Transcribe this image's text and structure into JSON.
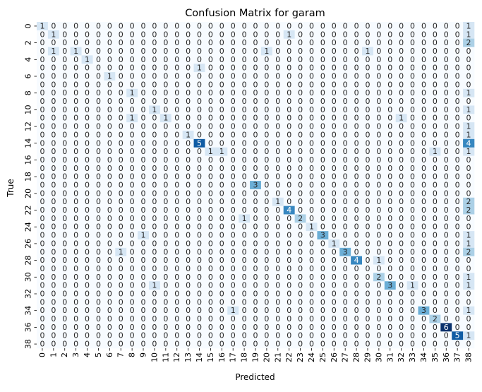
{
  "chart_data": {
    "type": "heatmap",
    "title": "Confusion Matrix for garam",
    "xlabel": "Predicted",
    "ylabel": "True",
    "x_tick_labels": [
      "0",
      "1",
      "2",
      "3",
      "4",
      "5",
      "6",
      "7",
      "8",
      "9",
      "10",
      "11",
      "12",
      "13",
      "14",
      "15",
      "16",
      "17",
      "18",
      "19",
      "20",
      "21",
      "22",
      "23",
      "24",
      "25",
      "26",
      "27",
      "28",
      "29",
      "30",
      "31",
      "32",
      "33",
      "34",
      "35",
      "36",
      "37",
      "38"
    ],
    "y_tick_labels": [
      "0",
      "2",
      "4",
      "6",
      "8",
      "10",
      "12",
      "14",
      "16",
      "18",
      "20",
      "22",
      "24",
      "26",
      "28",
      "30",
      "32",
      "34",
      "36",
      "38"
    ],
    "colormap": "Blues",
    "vmin": 0,
    "vmax": 6,
    "colorbar": false,
    "matrix": [
      [
        1,
        0,
        0,
        0,
        0,
        0,
        0,
        0,
        0,
        0,
        0,
        0,
        0,
        0,
        0,
        0,
        0,
        0,
        0,
        0,
        0,
        0,
        0,
        0,
        0,
        0,
        0,
        0,
        0,
        0,
        0,
        0,
        0,
        0,
        0,
        0,
        0,
        0,
        1
      ],
      [
        0,
        1,
        0,
        0,
        0,
        0,
        0,
        0,
        0,
        0,
        0,
        0,
        0,
        0,
        0,
        0,
        0,
        0,
        0,
        0,
        0,
        0,
        1,
        0,
        0,
        0,
        0,
        0,
        0,
        0,
        0,
        0,
        0,
        0,
        0,
        0,
        0,
        0,
        1
      ],
      [
        0,
        0,
        0,
        0,
        0,
        0,
        0,
        0,
        0,
        0,
        0,
        0,
        0,
        0,
        0,
        0,
        0,
        0,
        0,
        0,
        0,
        0,
        0,
        0,
        0,
        0,
        0,
        0,
        0,
        0,
        0,
        0,
        0,
        0,
        0,
        0,
        0,
        0,
        2
      ],
      [
        0,
        1,
        0,
        1,
        0,
        0,
        0,
        0,
        0,
        0,
        0,
        0,
        0,
        0,
        0,
        0,
        0,
        0,
        0,
        0,
        1,
        0,
        0,
        0,
        0,
        0,
        0,
        0,
        0,
        1,
        0,
        0,
        0,
        0,
        0,
        0,
        0,
        0,
        0
      ],
      [
        0,
        0,
        0,
        0,
        1,
        0,
        0,
        0,
        0,
        0,
        0,
        0,
        0,
        0,
        0,
        0,
        0,
        0,
        0,
        0,
        0,
        0,
        0,
        0,
        0,
        0,
        0,
        0,
        0,
        0,
        0,
        0,
        0,
        0,
        0,
        0,
        0,
        0,
        0
      ],
      [
        0,
        0,
        0,
        0,
        0,
        0,
        0,
        0,
        0,
        0,
        0,
        0,
        0,
        0,
        1,
        0,
        0,
        0,
        0,
        0,
        0,
        0,
        0,
        0,
        0,
        0,
        0,
        0,
        0,
        0,
        0,
        0,
        0,
        0,
        0,
        0,
        0,
        0,
        0
      ],
      [
        0,
        0,
        0,
        0,
        0,
        0,
        1,
        0,
        0,
        0,
        0,
        0,
        0,
        0,
        0,
        0,
        0,
        0,
        0,
        0,
        0,
        0,
        0,
        0,
        0,
        0,
        0,
        0,
        0,
        0,
        0,
        0,
        0,
        0,
        0,
        0,
        0,
        0,
        0
      ],
      [
        0,
        0,
        0,
        0,
        0,
        0,
        0,
        0,
        0,
        0,
        0,
        0,
        0,
        0,
        0,
        0,
        0,
        0,
        0,
        0,
        0,
        0,
        0,
        0,
        0,
        0,
        0,
        0,
        0,
        0,
        0,
        0,
        0,
        0,
        0,
        0,
        0,
        0,
        0
      ],
      [
        0,
        0,
        0,
        0,
        0,
        0,
        0,
        0,
        1,
        0,
        0,
        0,
        0,
        0,
        0,
        0,
        0,
        0,
        0,
        0,
        0,
        0,
        0,
        0,
        0,
        0,
        0,
        0,
        0,
        0,
        0,
        0,
        0,
        0,
        0,
        0,
        0,
        0,
        1
      ],
      [
        0,
        0,
        0,
        0,
        0,
        0,
        0,
        0,
        0,
        0,
        0,
        0,
        0,
        0,
        0,
        0,
        0,
        0,
        0,
        0,
        0,
        0,
        0,
        0,
        0,
        0,
        0,
        0,
        0,
        0,
        0,
        0,
        0,
        0,
        0,
        0,
        0,
        0,
        0
      ],
      [
        0,
        0,
        0,
        0,
        0,
        0,
        0,
        0,
        0,
        0,
        1,
        0,
        0,
        0,
        0,
        0,
        0,
        0,
        0,
        0,
        0,
        0,
        0,
        0,
        0,
        0,
        0,
        0,
        0,
        0,
        0,
        0,
        0,
        0,
        0,
        0,
        0,
        0,
        1
      ],
      [
        0,
        0,
        0,
        0,
        0,
        0,
        0,
        0,
        1,
        0,
        0,
        1,
        0,
        0,
        0,
        0,
        0,
        0,
        0,
        0,
        0,
        0,
        0,
        0,
        0,
        0,
        0,
        0,
        0,
        0,
        0,
        0,
        1,
        0,
        0,
        0,
        0,
        0,
        0
      ],
      [
        0,
        0,
        0,
        0,
        0,
        0,
        0,
        0,
        0,
        0,
        0,
        0,
        0,
        0,
        0,
        0,
        0,
        0,
        0,
        0,
        0,
        0,
        0,
        0,
        0,
        0,
        0,
        0,
        0,
        0,
        0,
        0,
        0,
        0,
        0,
        0,
        0,
        0,
        1
      ],
      [
        0,
        0,
        0,
        0,
        0,
        0,
        0,
        0,
        0,
        0,
        0,
        0,
        0,
        1,
        0,
        0,
        0,
        0,
        0,
        0,
        0,
        0,
        0,
        0,
        0,
        0,
        0,
        0,
        0,
        0,
        0,
        0,
        0,
        0,
        0,
        0,
        0,
        0,
        1
      ],
      [
        0,
        0,
        0,
        0,
        0,
        0,
        0,
        0,
        0,
        0,
        0,
        0,
        0,
        0,
        5,
        0,
        0,
        0,
        0,
        0,
        0,
        0,
        0,
        0,
        0,
        0,
        0,
        0,
        0,
        0,
        0,
        0,
        0,
        0,
        0,
        0,
        0,
        0,
        4
      ],
      [
        0,
        0,
        0,
        0,
        0,
        0,
        0,
        0,
        0,
        0,
        0,
        0,
        0,
        0,
        0,
        1,
        1,
        0,
        0,
        0,
        0,
        0,
        0,
        0,
        0,
        0,
        0,
        0,
        0,
        0,
        0,
        0,
        0,
        0,
        0,
        1,
        0,
        0,
        1
      ],
      [
        0,
        0,
        0,
        0,
        0,
        0,
        0,
        0,
        0,
        0,
        0,
        0,
        0,
        0,
        0,
        0,
        0,
        0,
        0,
        0,
        0,
        0,
        0,
        0,
        0,
        0,
        0,
        0,
        0,
        0,
        0,
        0,
        0,
        0,
        0,
        0,
        0,
        0,
        0
      ],
      [
        0,
        0,
        0,
        0,
        0,
        0,
        0,
        0,
        0,
        0,
        0,
        0,
        0,
        0,
        0,
        0,
        0,
        0,
        0,
        0,
        0,
        0,
        0,
        0,
        0,
        0,
        0,
        0,
        0,
        0,
        0,
        0,
        0,
        0,
        0,
        0,
        0,
        0,
        0
      ],
      [
        0,
        0,
        0,
        0,
        0,
        0,
        0,
        0,
        0,
        0,
        0,
        0,
        0,
        0,
        0,
        0,
        0,
        0,
        0,
        0,
        0,
        0,
        0,
        0,
        0,
        0,
        0,
        0,
        0,
        0,
        0,
        0,
        0,
        0,
        0,
        0,
        0,
        0,
        0
      ],
      [
        0,
        0,
        0,
        0,
        0,
        0,
        0,
        0,
        0,
        0,
        0,
        0,
        0,
        0,
        0,
        0,
        0,
        0,
        0,
        3,
        0,
        0,
        0,
        0,
        0,
        0,
        0,
        0,
        0,
        0,
        0,
        0,
        0,
        0,
        0,
        0,
        0,
        0,
        0
      ],
      [
        0,
        0,
        0,
        0,
        0,
        0,
        0,
        0,
        0,
        0,
        0,
        0,
        0,
        0,
        0,
        0,
        0,
        0,
        0,
        0,
        0,
        0,
        0,
        0,
        0,
        0,
        0,
        0,
        0,
        0,
        0,
        0,
        0,
        0,
        0,
        0,
        0,
        0,
        0
      ],
      [
        0,
        0,
        0,
        0,
        0,
        0,
        0,
        0,
        0,
        0,
        0,
        0,
        0,
        0,
        0,
        0,
        0,
        0,
        0,
        0,
        0,
        1,
        0,
        0,
        0,
        0,
        0,
        0,
        0,
        0,
        0,
        0,
        0,
        0,
        0,
        0,
        0,
        0,
        2
      ],
      [
        0,
        0,
        0,
        0,
        0,
        0,
        0,
        0,
        0,
        0,
        0,
        0,
        0,
        0,
        0,
        0,
        0,
        0,
        0,
        0,
        0,
        0,
        4,
        0,
        0,
        0,
        0,
        0,
        0,
        0,
        0,
        0,
        0,
        0,
        0,
        0,
        0,
        0,
        2
      ],
      [
        0,
        0,
        0,
        0,
        0,
        0,
        0,
        0,
        0,
        0,
        0,
        0,
        0,
        0,
        0,
        0,
        0,
        0,
        1,
        0,
        0,
        0,
        0,
        2,
        0,
        0,
        0,
        0,
        0,
        0,
        0,
        0,
        0,
        0,
        0,
        0,
        0,
        0,
        0
      ],
      [
        0,
        0,
        0,
        0,
        0,
        0,
        0,
        0,
        0,
        0,
        0,
        0,
        0,
        0,
        0,
        0,
        0,
        0,
        0,
        0,
        0,
        0,
        0,
        0,
        1,
        0,
        0,
        0,
        0,
        0,
        0,
        0,
        0,
        0,
        0,
        0,
        0,
        0,
        0
      ],
      [
        0,
        0,
        0,
        0,
        0,
        0,
        0,
        0,
        0,
        1,
        0,
        0,
        0,
        0,
        0,
        0,
        0,
        0,
        0,
        0,
        0,
        0,
        0,
        0,
        0,
        3,
        0,
        0,
        0,
        0,
        0,
        0,
        0,
        0,
        0,
        0,
        0,
        0,
        1
      ],
      [
        0,
        0,
        0,
        0,
        0,
        0,
        0,
        0,
        0,
        0,
        0,
        0,
        0,
        0,
        0,
        0,
        0,
        0,
        0,
        0,
        0,
        0,
        0,
        0,
        0,
        0,
        1,
        0,
        0,
        0,
        0,
        0,
        0,
        0,
        0,
        0,
        0,
        0,
        1
      ],
      [
        0,
        0,
        0,
        0,
        0,
        0,
        0,
        1,
        0,
        0,
        0,
        0,
        0,
        0,
        0,
        0,
        0,
        0,
        0,
        0,
        0,
        0,
        0,
        0,
        0,
        0,
        0,
        3,
        0,
        0,
        0,
        0,
        0,
        0,
        0,
        0,
        0,
        0,
        2
      ],
      [
        0,
        0,
        0,
        0,
        0,
        0,
        0,
        0,
        0,
        0,
        0,
        0,
        0,
        0,
        0,
        0,
        0,
        0,
        0,
        0,
        0,
        0,
        0,
        0,
        0,
        0,
        0,
        0,
        4,
        0,
        1,
        0,
        0,
        0,
        0,
        0,
        0,
        0,
        0
      ],
      [
        0,
        0,
        0,
        0,
        0,
        0,
        0,
        0,
        0,
        0,
        0,
        0,
        0,
        0,
        0,
        0,
        0,
        0,
        0,
        0,
        0,
        0,
        0,
        0,
        0,
        0,
        0,
        0,
        0,
        0,
        0,
        0,
        0,
        0,
        0,
        0,
        0,
        0,
        0
      ],
      [
        0,
        0,
        0,
        0,
        0,
        0,
        0,
        0,
        0,
        0,
        0,
        0,
        0,
        0,
        0,
        0,
        0,
        0,
        0,
        0,
        0,
        0,
        0,
        0,
        0,
        0,
        0,
        0,
        0,
        0,
        2,
        0,
        0,
        0,
        0,
        0,
        0,
        0,
        1
      ],
      [
        0,
        0,
        0,
        0,
        0,
        0,
        0,
        0,
        0,
        0,
        1,
        0,
        0,
        0,
        0,
        0,
        0,
        0,
        0,
        0,
        0,
        0,
        0,
        0,
        0,
        0,
        0,
        0,
        0,
        0,
        0,
        3,
        0,
        1,
        0,
        0,
        0,
        0,
        1
      ],
      [
        0,
        0,
        0,
        0,
        0,
        0,
        0,
        0,
        0,
        0,
        0,
        0,
        0,
        0,
        0,
        0,
        0,
        0,
        0,
        0,
        0,
        0,
        0,
        0,
        0,
        0,
        0,
        0,
        0,
        0,
        0,
        0,
        0,
        0,
        0,
        0,
        0,
        0,
        0
      ],
      [
        0,
        0,
        0,
        0,
        0,
        0,
        0,
        0,
        0,
        0,
        0,
        0,
        0,
        0,
        0,
        0,
        0,
        0,
        0,
        0,
        0,
        0,
        0,
        0,
        0,
        0,
        0,
        0,
        0,
        0,
        0,
        0,
        0,
        0,
        0,
        0,
        0,
        0,
        0
      ],
      [
        0,
        0,
        0,
        0,
        0,
        0,
        0,
        0,
        0,
        0,
        0,
        0,
        0,
        0,
        0,
        0,
        0,
        1,
        0,
        0,
        0,
        0,
        0,
        0,
        0,
        0,
        0,
        0,
        0,
        0,
        0,
        0,
        0,
        0,
        3,
        0,
        0,
        0,
        1
      ],
      [
        0,
        0,
        0,
        0,
        0,
        0,
        0,
        0,
        0,
        0,
        0,
        0,
        0,
        0,
        0,
        0,
        0,
        0,
        0,
        0,
        0,
        0,
        0,
        0,
        0,
        0,
        0,
        0,
        0,
        0,
        0,
        0,
        0,
        0,
        0,
        2,
        0,
        0,
        0
      ],
      [
        0,
        0,
        0,
        0,
        0,
        0,
        0,
        0,
        0,
        0,
        0,
        0,
        0,
        0,
        0,
        0,
        0,
        0,
        0,
        0,
        0,
        0,
        0,
        0,
        0,
        0,
        0,
        0,
        0,
        0,
        0,
        0,
        0,
        0,
        0,
        0,
        6,
        0,
        0
      ],
      [
        0,
        0,
        0,
        0,
        0,
        0,
        0,
        0,
        0,
        0,
        0,
        0,
        0,
        0,
        0,
        0,
        0,
        0,
        0,
        0,
        0,
        0,
        0,
        0,
        0,
        0,
        0,
        0,
        0,
        0,
        0,
        0,
        0,
        0,
        0,
        0,
        0,
        5,
        1
      ],
      [
        0,
        0,
        0,
        0,
        0,
        0,
        0,
        0,
        0,
        0,
        0,
        0,
        0,
        0,
        0,
        0,
        0,
        0,
        0,
        0,
        0,
        0,
        0,
        0,
        0,
        0,
        0,
        0,
        0,
        0,
        0,
        0,
        0,
        0,
        0,
        0,
        0,
        0,
        0
      ]
    ]
  }
}
